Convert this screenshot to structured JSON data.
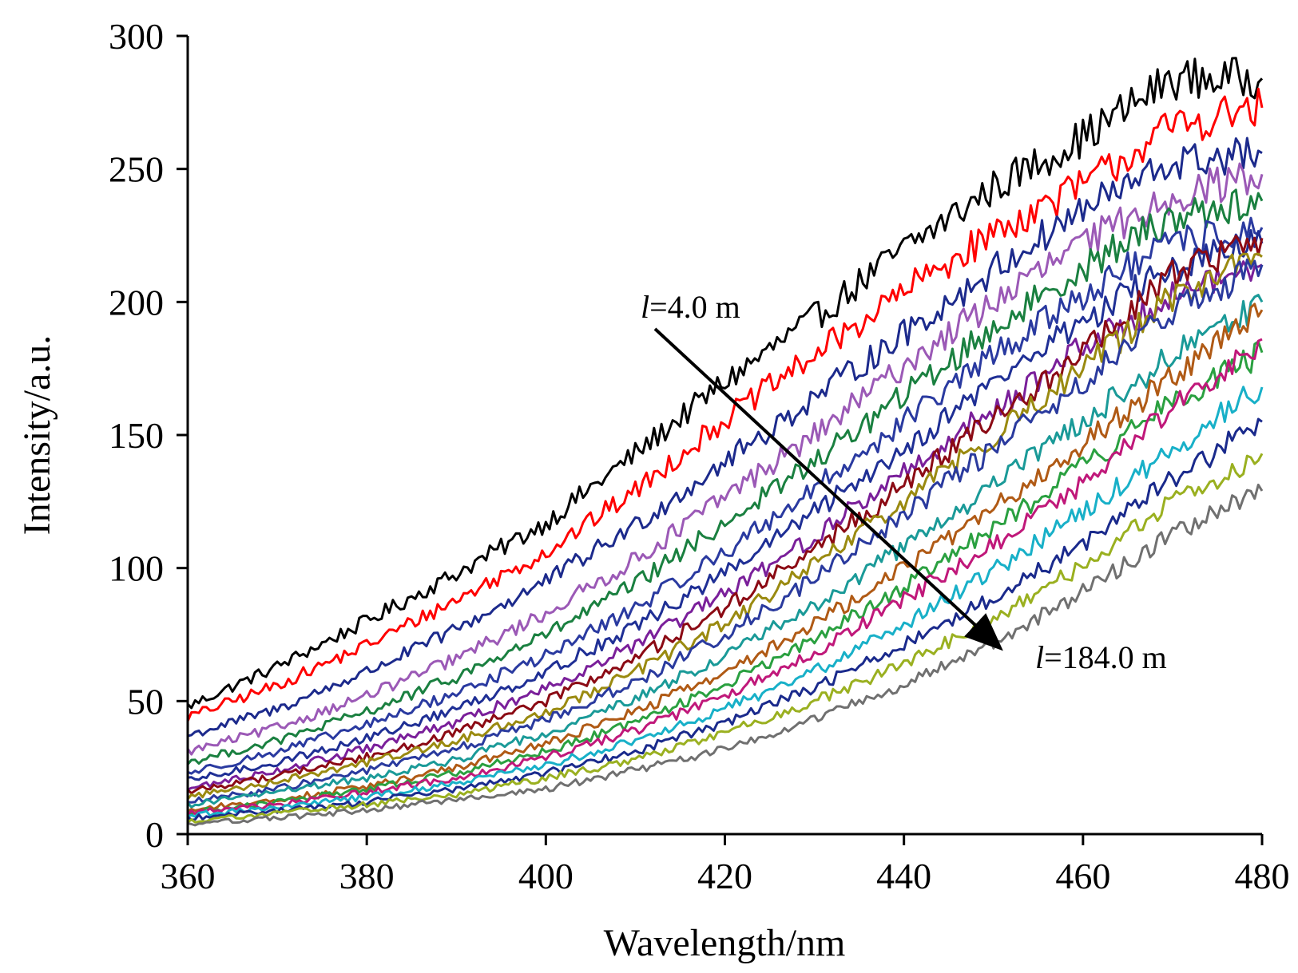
{
  "chart_data": {
    "type": "line",
    "title": "",
    "xlabel": "Wavelength/nm",
    "ylabel": "Intensity/a.u.",
    "xlim": [
      360,
      480
    ],
    "ylim": [
      0,
      300
    ],
    "xticks": [
      360,
      380,
      400,
      420,
      440,
      460,
      480
    ],
    "yticks": [
      0,
      50,
      100,
      150,
      200,
      250,
      300
    ],
    "grid": false,
    "legend": "none",
    "x": [
      360,
      370,
      380,
      390,
      400,
      410,
      420,
      430,
      440,
      450,
      460,
      470,
      480
    ],
    "series": [
      {
        "color": "#000000",
        "values": [
          48,
          63,
          80,
          98,
          117,
          143,
          170,
          194,
          220,
          243,
          262,
          284,
          284
        ]
      },
      {
        "color": "#ff0000",
        "values": [
          44,
          56,
          71,
          88,
          106,
          129,
          156,
          180,
          204,
          226,
          244,
          266,
          273
        ]
      },
      {
        "color": "#1c2a8c",
        "values": [
          37,
          47,
          61,
          77,
          95,
          116,
          140,
          164,
          188,
          212,
          235,
          252,
          256
        ]
      },
      {
        "color": "#9b59b6",
        "values": [
          31,
          40,
          52,
          66,
          83,
          103,
          127,
          150,
          176,
          200,
          222,
          240,
          248
        ]
      },
      {
        "color": "#1a8040",
        "values": [
          27,
          35,
          46,
          59,
          75,
          94,
          117,
          140,
          165,
          190,
          213,
          232,
          238
        ]
      },
      {
        "color": "#2a3aa0",
        "values": [
          23,
          31,
          41,
          53,
          67,
          85,
          106,
          130,
          155,
          180,
          203,
          222,
          228
        ]
      },
      {
        "color": "#1f2f95",
        "values": [
          20,
          27,
          36,
          47,
          61,
          78,
          98,
          121,
          145,
          170,
          193,
          213,
          222
        ]
      },
      {
        "color": "#7a1f9a",
        "values": [
          17,
          24,
          32,
          42,
          55,
          71,
          90,
          112,
          136,
          160,
          183,
          203,
          214
        ]
      },
      {
        "color": "#8b0a14",
        "values": [
          16,
          22,
          29,
          38,
          50,
          66,
          85,
          107,
          131,
          156,
          181,
          210,
          224
        ]
      },
      {
        "color": "#9a8a10",
        "values": [
          14,
          20,
          27,
          35,
          46,
          61,
          79,
          101,
          125,
          150,
          175,
          202,
          217
        ]
      },
      {
        "color": "#2a3a9e",
        "values": [
          12,
          17,
          24,
          32,
          43,
          57,
          75,
          96,
          120,
          145,
          170,
          196,
          214
        ]
      },
      {
        "color": "#1a9a98",
        "values": [
          11,
          16,
          21,
          28,
          38,
          51,
          67,
          86,
          108,
          131,
          155,
          180,
          200
        ]
      },
      {
        "color": "#b05a15",
        "values": [
          9,
          13,
          18,
          25,
          34,
          46,
          61,
          79,
          100,
          123,
          147,
          172,
          197
        ]
      },
      {
        "color": "#2aa040",
        "values": [
          8,
          12,
          17,
          23,
          31,
          42,
          56,
          73,
          93,
          115,
          138,
          162,
          181
        ]
      },
      {
        "color": "#c0187a",
        "values": [
          8,
          11,
          16,
          21,
          29,
          39,
          52,
          68,
          88,
          109,
          132,
          160,
          186
        ]
      },
      {
        "color": "#18b0c8",
        "values": [
          7,
          10,
          14,
          19,
          26,
          35,
          47,
          61,
          79,
          99,
          121,
          145,
          168
        ]
      },
      {
        "color": "#1a2a8c",
        "values": [
          6,
          9,
          12,
          17,
          23,
          31,
          42,
          55,
          71,
          89,
          109,
          133,
          155
        ]
      },
      {
        "color": "#9ab020",
        "values": [
          5,
          8,
          11,
          15,
          21,
          28,
          38,
          50,
          64,
          81,
          101,
          125,
          143
        ]
      },
      {
        "color": "#707070",
        "values": [
          4,
          6,
          9,
          13,
          17,
          24,
          32,
          43,
          56,
          72,
          91,
          113,
          129
        ]
      }
    ],
    "annotations": [
      {
        "italic": "l",
        "text": "=4.0 m"
      },
      {
        "italic": "l",
        "text": "=184.0 m"
      }
    ]
  }
}
